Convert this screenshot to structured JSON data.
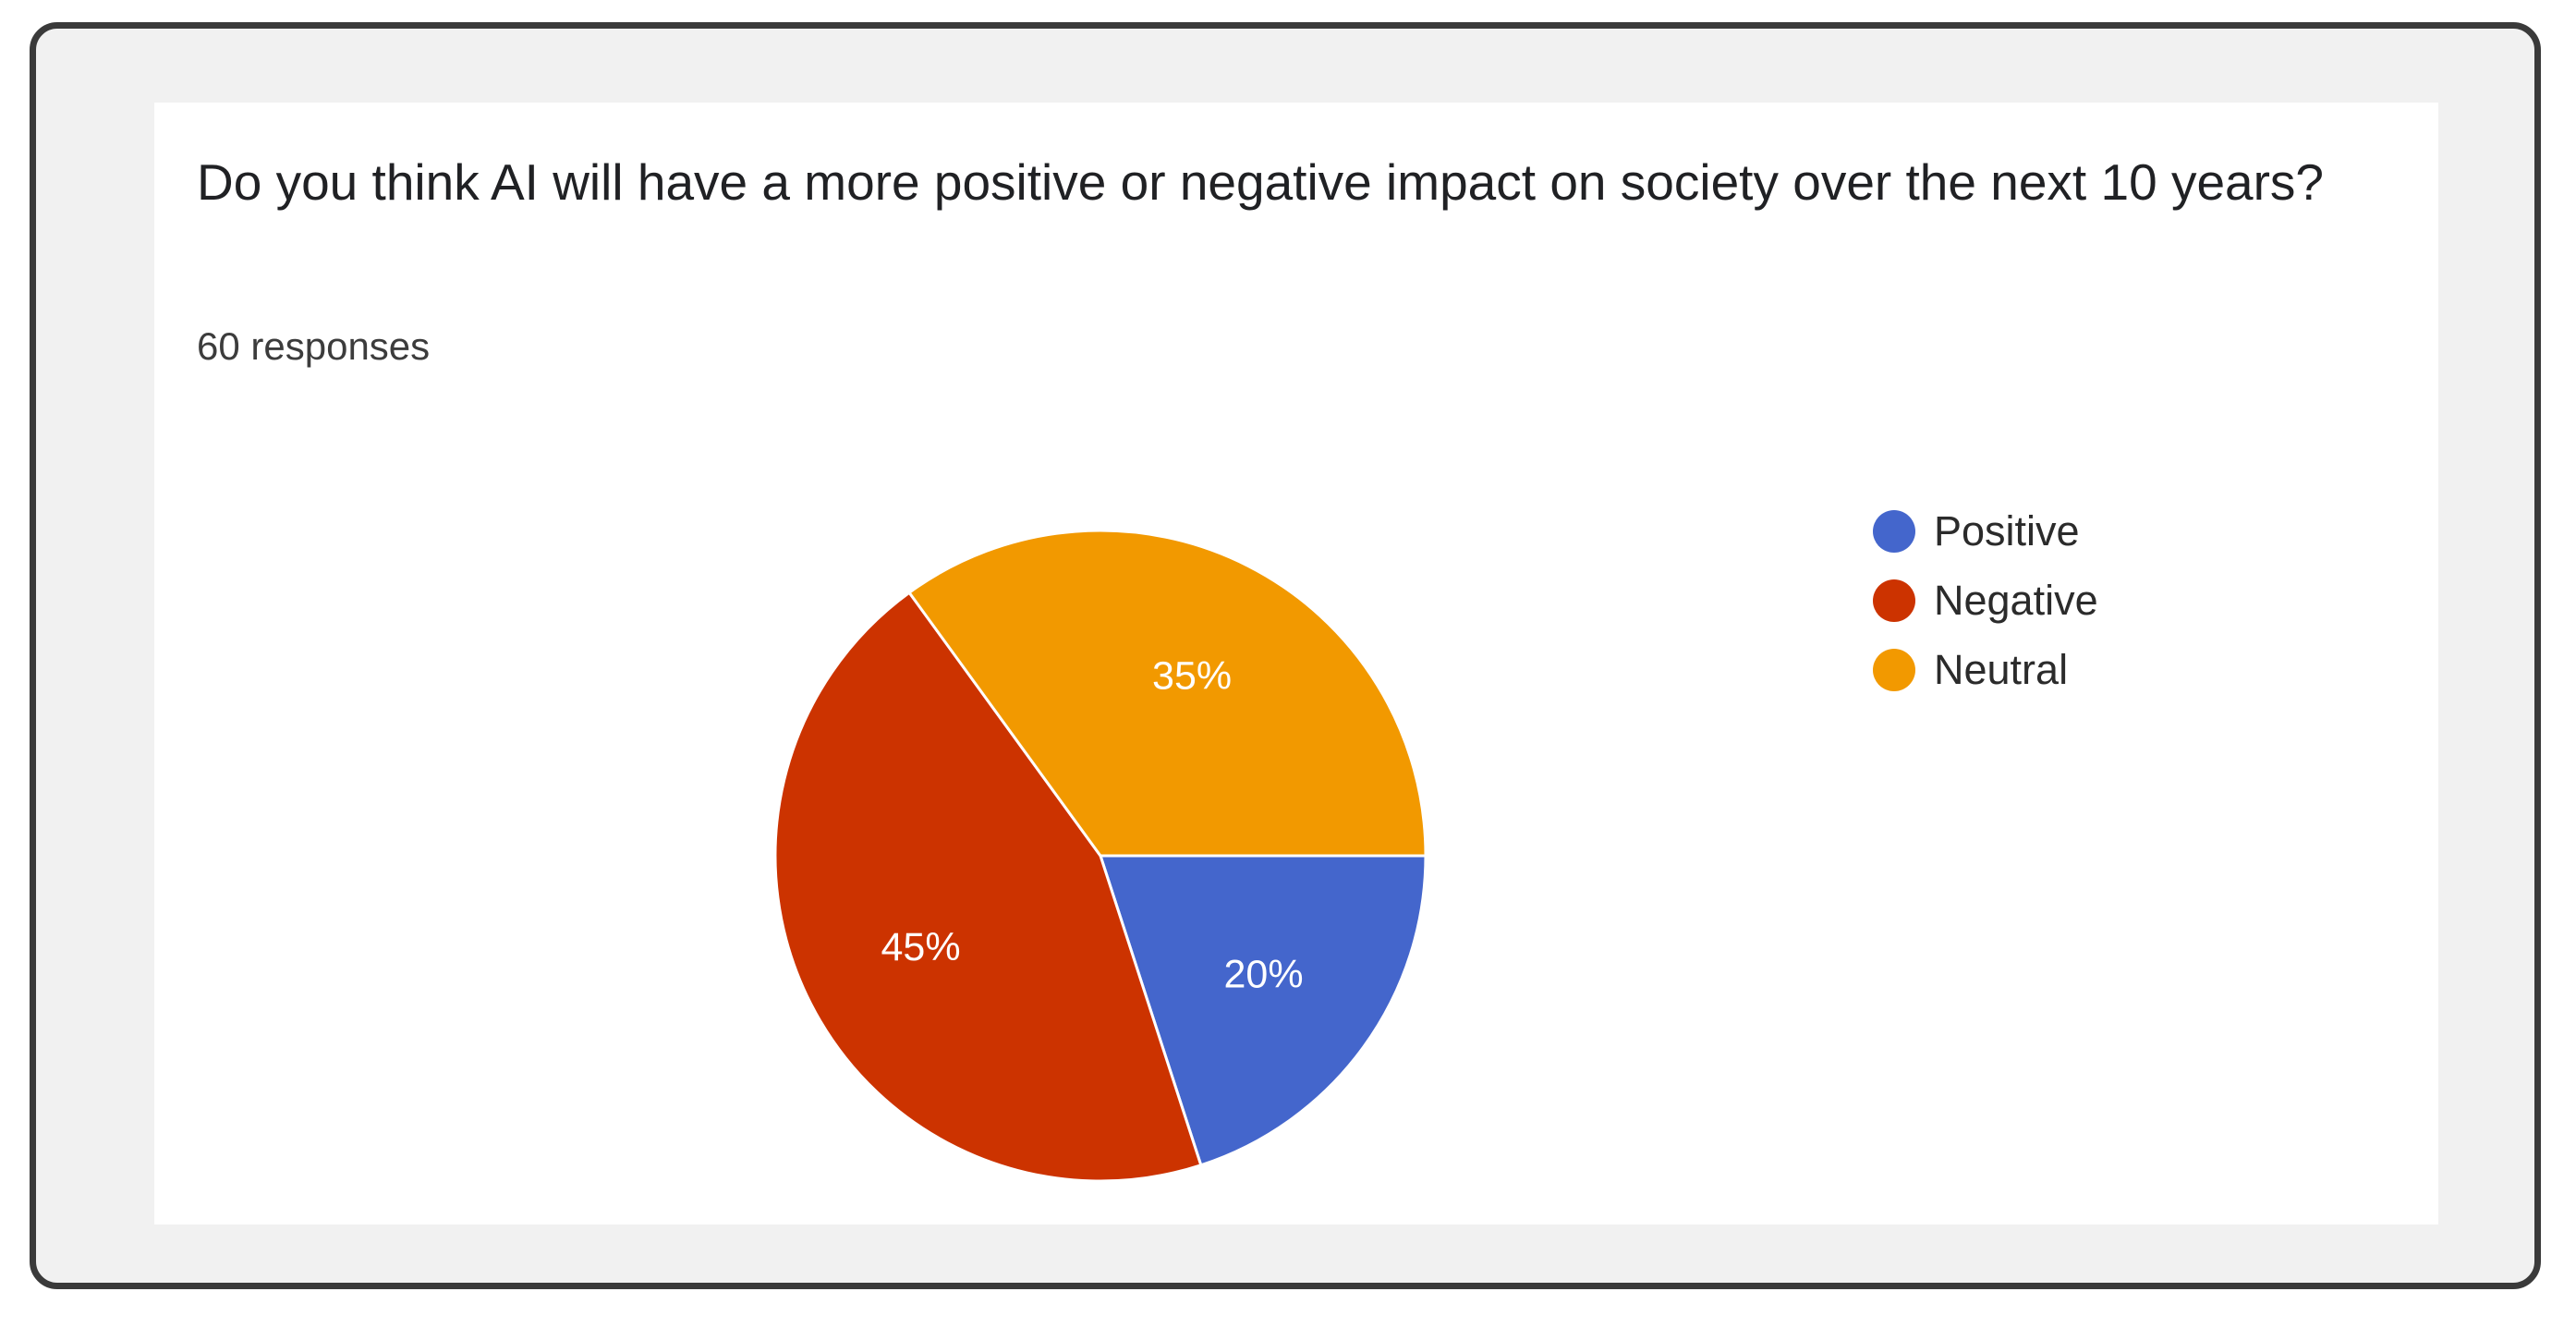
{
  "question": {
    "title": "Do you think AI will have a more positive or negative impact on society over the next 10 years?",
    "responses": "60 responses"
  },
  "chart_data": {
    "type": "pie",
    "title": "Do you think AI will have a more positive or negative impact on society over the next 10 years?",
    "categories": [
      "Positive",
      "Negative",
      "Neutral"
    ],
    "values": [
      20,
      45,
      35
    ],
    "labels": [
      "20%",
      "45%",
      "35%"
    ],
    "colors": [
      "#4466cc",
      "#cc3300",
      "#f29900"
    ],
    "start_angle_deg": 90,
    "direction": "clockwise",
    "legend_position": "right"
  }
}
